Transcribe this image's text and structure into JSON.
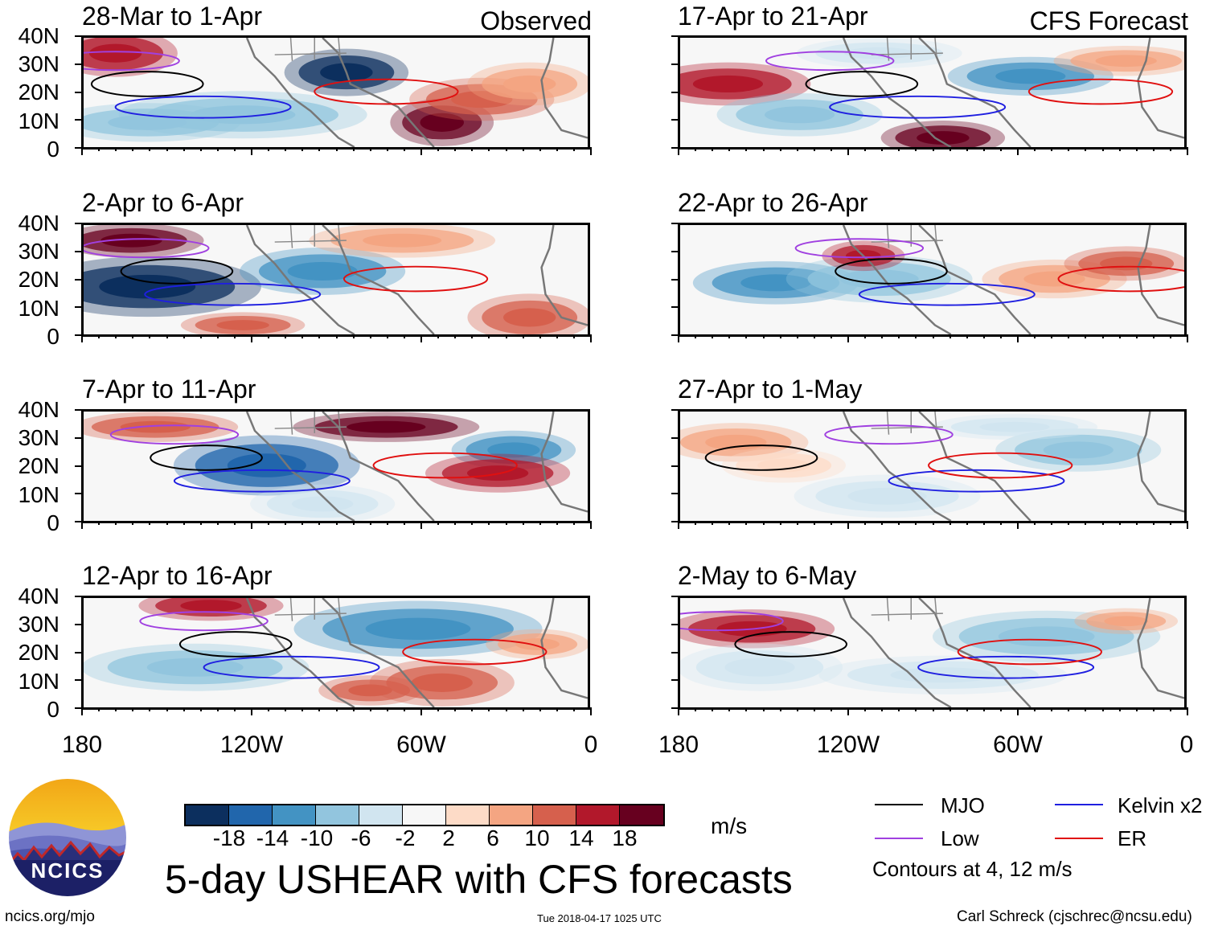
{
  "figure": {
    "title": "5-day USHEAR with CFS forecasts",
    "source_url": "ncics.org/mjo",
    "timestamp": "Tue 2018-04-17 1025 UTC",
    "author": "Carl Schreck (cjschrec@ncsu.edu)",
    "logo_text": "NCICS"
  },
  "columns": {
    "left_label": "Observed",
    "right_label": "CFS Forecast"
  },
  "axes": {
    "y_ticks": [
      "40N",
      "30N",
      "20N",
      "10N",
      "0"
    ],
    "x_ticks": [
      "180",
      "120W",
      "60W",
      "0"
    ]
  },
  "panels": [
    {
      "period": "28-Mar to 1-Apr",
      "kind": "observed"
    },
    {
      "period": "2-Apr to 6-Apr",
      "kind": "observed"
    },
    {
      "period": "7-Apr to 11-Apr",
      "kind": "observed"
    },
    {
      "period": "12-Apr to 16-Apr",
      "kind": "observed"
    },
    {
      "period": "17-Apr to 21-Apr",
      "kind": "forecast"
    },
    {
      "period": "22-Apr to 26-Apr",
      "kind": "forecast"
    },
    {
      "period": "27-Apr to 1-May",
      "kind": "forecast"
    },
    {
      "period": "2-May to 6-May",
      "kind": "forecast"
    }
  ],
  "colorbar": {
    "units": "m/s",
    "labels": [
      "-18",
      "-14",
      "-10",
      "-6",
      "-2",
      "2",
      "6",
      "10",
      "14",
      "18"
    ],
    "colors": [
      "#0c2f5e",
      "#2166ac",
      "#4393c3",
      "#92c5de",
      "#d1e5f0",
      "#f7f7f7",
      "#fddbc7",
      "#f4a582",
      "#d6604d",
      "#b2182b",
      "#67001f"
    ]
  },
  "legend": {
    "items": [
      {
        "label": "MJO",
        "color": "#000000"
      },
      {
        "label": "Kelvin x2",
        "color": "#1f1fe0"
      },
      {
        "label": "Low",
        "color": "#a040e0"
      },
      {
        "label": "ER",
        "color": "#e01010"
      }
    ],
    "contours_note": "Contours at 4, 12 m/s"
  }
}
